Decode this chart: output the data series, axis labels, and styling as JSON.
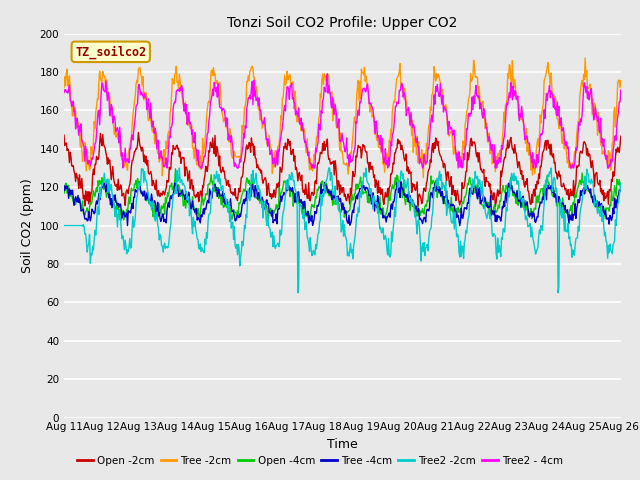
{
  "title": "Tonzi Soil CO2 Profile: Upper CO2",
  "xlabel": "Time",
  "ylabel": "Soil CO2 (ppm)",
  "ylim": [
    0,
    200
  ],
  "yticks": [
    0,
    20,
    40,
    60,
    80,
    100,
    120,
    140,
    160,
    180,
    200
  ],
  "x_tick_labels": [
    "Aug 11",
    "Aug 12",
    "Aug 13",
    "Aug 14",
    "Aug 15",
    "Aug 16",
    "Aug 17",
    "Aug 18",
    "Aug 19",
    "Aug 20",
    "Aug 21",
    "Aug 22",
    "Aug 23",
    "Aug 24",
    "Aug 25",
    "Aug 26"
  ],
  "watermark": "TZ_soilco2",
  "series": [
    {
      "label": "Open -2cm",
      "color": "#cc0000",
      "lw": 1.0
    },
    {
      "label": "Tree -2cm",
      "color": "#ff9900",
      "lw": 1.0
    },
    {
      "label": "Open -4cm",
      "color": "#00cc00",
      "lw": 1.0
    },
    {
      "label": "Tree -4cm",
      "color": "#0000cc",
      "lw": 1.0
    },
    {
      "label": "Tree2 -2cm",
      "color": "#00cccc",
      "lw": 1.0
    },
    {
      "label": "Tree2 - 4cm",
      "color": "#ff00ff",
      "lw": 1.0
    }
  ],
  "bg_color": "#e8e8e8",
  "plot_bg_color": "#e8e8e8",
  "grid_color": "white",
  "legend_bg": "#ffffcc",
  "legend_border": "#cc0000"
}
